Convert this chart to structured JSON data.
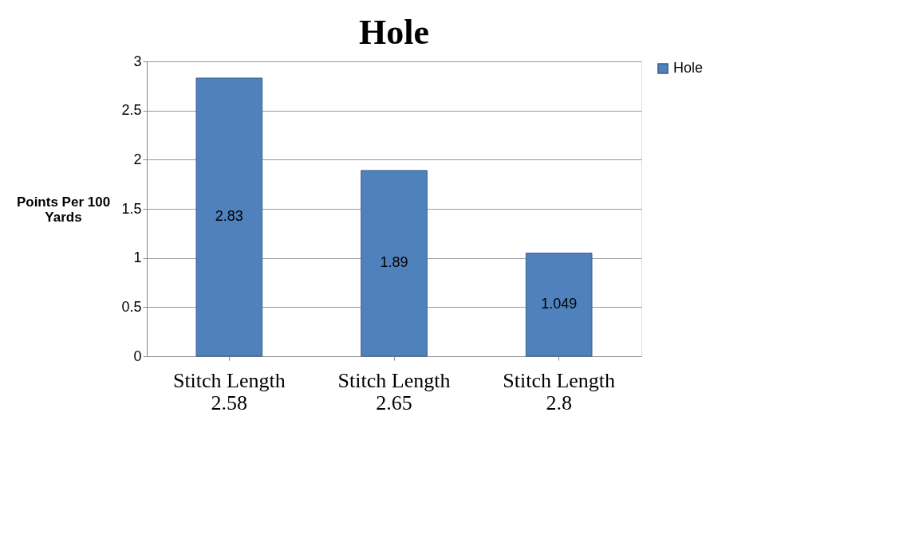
{
  "chart_data": {
    "type": "bar",
    "title": "Hole",
    "ylabel": "Points Per 100 Yards",
    "categories": [
      "Stitch Length 2.58",
      "Stitch Length 2.65",
      "Stitch Length 2.8"
    ],
    "series": [
      {
        "name": "Hole",
        "color": "#4f81bd",
        "values": [
          2.83,
          1.89,
          1.049
        ]
      }
    ],
    "ylim": [
      0,
      3
    ],
    "yticks": [
      0,
      0.5,
      1,
      1.5,
      2,
      2.5,
      3
    ],
    "grid": "y",
    "legend": "right",
    "data_labels": true
  }
}
